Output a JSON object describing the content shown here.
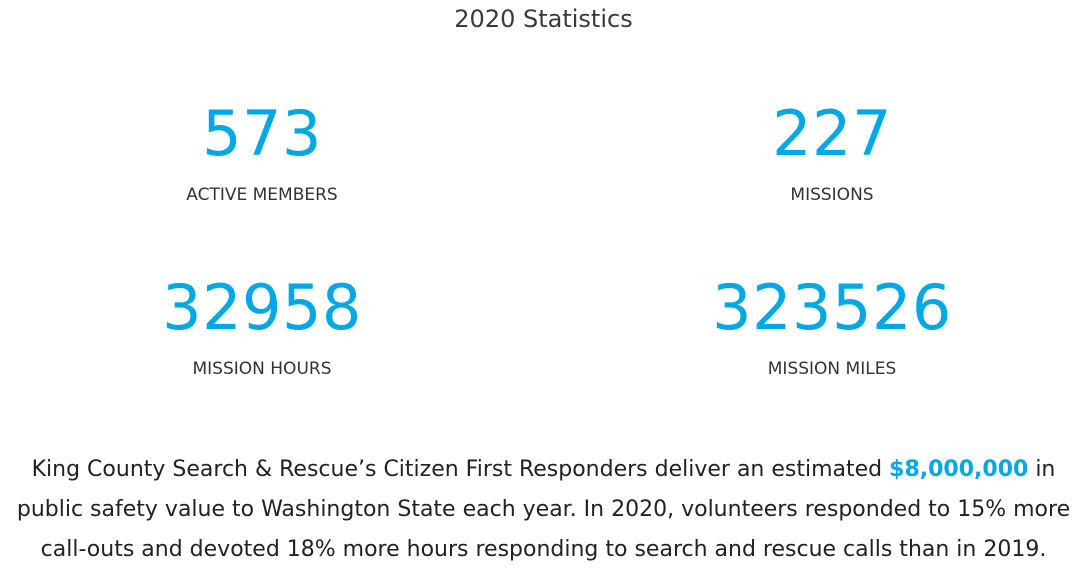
{
  "title": "2020 Statistics",
  "stats": [
    {
      "value": "573",
      "label": "ACTIVE MEMBERS"
    },
    {
      "value": "227",
      "label": "MISSIONS"
    },
    {
      "value": "32958",
      "label": "MISSION HOURS"
    },
    {
      "value": "323526",
      "label": "MISSION MILES"
    }
  ],
  "summary": {
    "before": "King County Search & Rescue’s Citizen First Responders deliver an estimated ",
    "highlight": "$8,000,000",
    "after": " in public safety value to Washington State each year. In 2020, volunteers responded to 15% more call-outs and devoted 18% more hours responding to search and rescue calls than in 2019."
  },
  "colors": {
    "accent": "#00a9e6",
    "text": "#333333"
  }
}
